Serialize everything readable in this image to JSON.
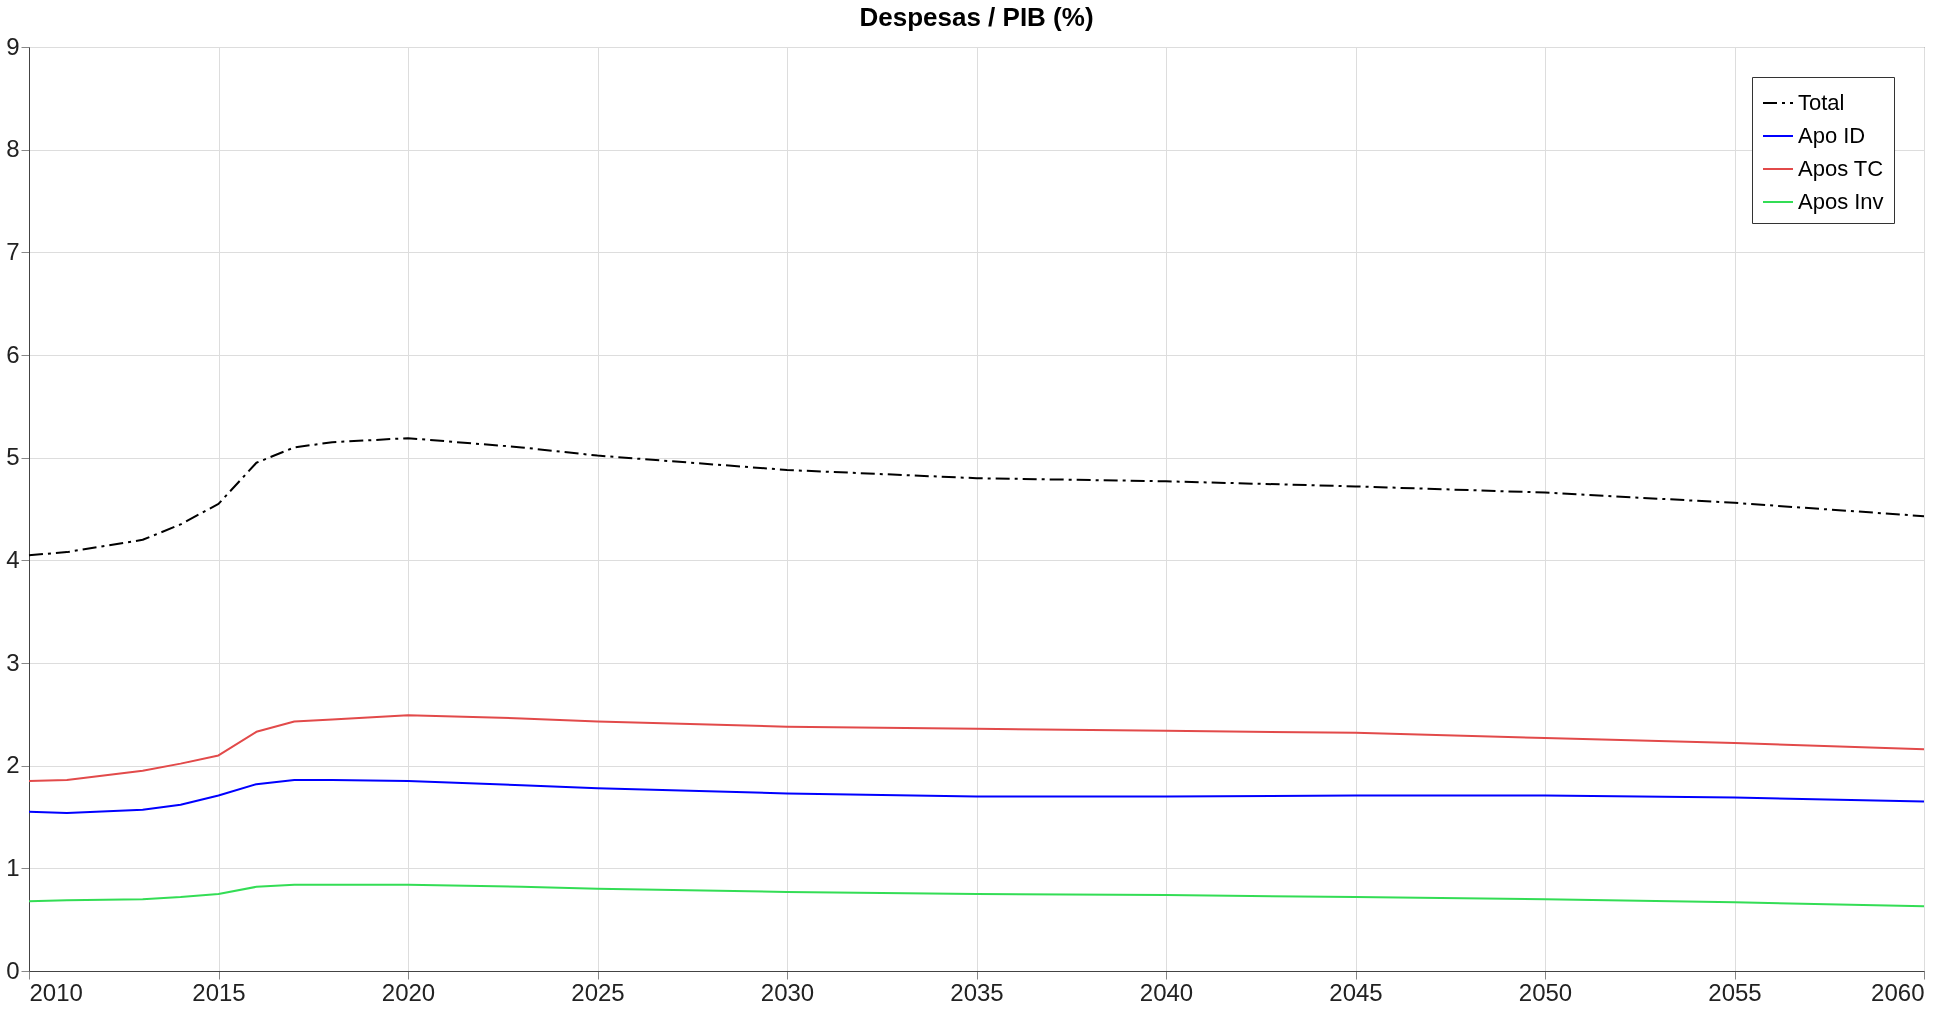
{
  "chart_data": {
    "type": "line",
    "title": "Despesas / PIB (%)",
    "xlim": [
      2010,
      2060
    ],
    "xticks": [
      2010,
      2015,
      2020,
      2025,
      2030,
      2035,
      2040,
      2045,
      2050,
      2055,
      2060
    ],
    "ylim": [
      0,
      9
    ],
    "yticks": [
      0,
      1,
      2,
      3,
      4,
      5,
      6,
      7,
      8,
      9
    ],
    "grid": true,
    "legend": "top right",
    "x": [
      2010,
      2011,
      2013,
      2014,
      2015,
      2016,
      2017,
      2018,
      2020,
      2023,
      2025,
      2030,
      2035,
      2040,
      2045,
      2050,
      2055,
      2060
    ],
    "series": [
      {
        "name": "Total",
        "color": "#000000",
        "line_style": "dashed",
        "values": [
          4.05,
          4.08,
          4.2,
          4.35,
          4.55,
          4.95,
          5.1,
          5.15,
          5.19,
          5.1,
          5.02,
          4.88,
          4.8,
          4.77,
          4.72,
          4.66,
          4.56,
          4.43
        ]
      },
      {
        "name": "Apo ID",
        "color": "#0000ff",
        "line_style": "solid",
        "values": [
          1.55,
          1.54,
          1.57,
          1.62,
          1.71,
          1.82,
          1.86,
          1.86,
          1.85,
          1.81,
          1.78,
          1.73,
          1.7,
          1.7,
          1.71,
          1.71,
          1.69,
          1.65
        ]
      },
      {
        "name": "Apos TC",
        "color": "#e24a4a",
        "line_style": "solid",
        "values": [
          1.85,
          1.86,
          1.95,
          2.02,
          2.1,
          2.33,
          2.43,
          2.45,
          2.49,
          2.46,
          2.43,
          2.38,
          2.36,
          2.34,
          2.32,
          2.27,
          2.22,
          2.16
        ]
      },
      {
        "name": "Apos Inv",
        "color": "#33dd55",
        "line_style": "solid",
        "values": [
          0.68,
          0.69,
          0.7,
          0.72,
          0.75,
          0.82,
          0.84,
          0.84,
          0.84,
          0.82,
          0.8,
          0.77,
          0.75,
          0.74,
          0.72,
          0.7,
          0.67,
          0.63
        ]
      }
    ]
  }
}
